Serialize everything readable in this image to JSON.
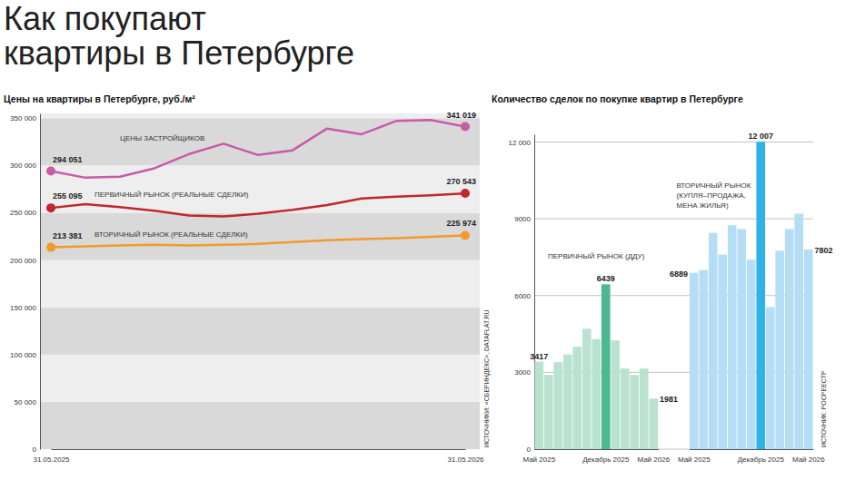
{
  "title": "Как покупают квартиры в Петербурге",
  "chart_data": [
    {
      "type": "line",
      "title": "Цены на квартиры в Петербурге, руб./м²",
      "categories": [
        "31.05.2025",
        null,
        null,
        null,
        null,
        null,
        null,
        null,
        null,
        null,
        null,
        null,
        "31.05.2026"
      ],
      "series": [
        {
          "name": "ЦЕНЫ ЗАСТРОЙЩИКОВ",
          "color": "#c75ba7",
          "values": [
            294051,
            287000,
            288000,
            297000,
            312000,
            323000,
            311000,
            316000,
            339000,
            333000,
            347000,
            348000,
            341019
          ],
          "value_labels": [
            "294 051",
            null,
            null,
            null,
            null,
            null,
            null,
            null,
            null,
            null,
            null,
            null,
            "341 019"
          ]
        },
        {
          "name": "ПЕРВИЧНЫЙ РЫНОК (РЕАЛЬНЫЕ СДЕЛКИ)",
          "color": "#c1272d",
          "values": [
            255095,
            259000,
            256000,
            252000,
            247000,
            246000,
            249000,
            253000,
            258000,
            265000,
            267000,
            268500,
            270543
          ],
          "value_labels": [
            "255 095",
            null,
            null,
            null,
            null,
            null,
            null,
            null,
            null,
            null,
            null,
            null,
            "270 543"
          ]
        },
        {
          "name": "ВТОРИЧНЫЙ РЫНОК (РЕАЛЬНЫЕ СДЕЛКИ)",
          "color": "#f29a2e",
          "values": [
            213381,
            214500,
            215500,
            216000,
            215500,
            216000,
            217000,
            219000,
            221000,
            222000,
            223000,
            224500,
            225974
          ],
          "value_labels": [
            "213 381",
            null,
            null,
            null,
            null,
            null,
            null,
            null,
            null,
            null,
            null,
            null,
            "225 974"
          ]
        }
      ],
      "ylim": [
        0,
        355000
      ],
      "yticks": [
        0,
        {
          "value": 50000,
          "label": "50 000"
        },
        {
          "value": 100000,
          "label": "100 000"
        },
        {
          "value": 150000,
          "label": "150 000"
        },
        {
          "value": 200000,
          "label": "200 000"
        },
        {
          "value": 250000,
          "label": "250 000"
        },
        {
          "value": 300000,
          "label": "300 000"
        },
        {
          "value": 350000,
          "label": "350 000"
        }
      ],
      "grid": true,
      "marker": "circle",
      "data_labels": true,
      "annotations": [
        "ИСТОЧНИКИ: «СБЕРИНДЕКС», DATAFLAT.RU"
      ]
    },
    {
      "type": "bar",
      "title": "Количество сделок по покупке квартир в Петербурге",
      "categories": [
        "Май 2025",
        null,
        null,
        null,
        null,
        null,
        null,
        "Декабрь 2025",
        null,
        null,
        null,
        null,
        "Май 2026"
      ],
      "series": [
        {
          "name": "ПЕРВИЧНЫЙ РЫНОК (ДДУ)",
          "colors": [
            "#b9e2cf",
            "#b9e2cf",
            "#b9e2cf",
            "#b9e2cf",
            "#b9e2cf",
            "#b9e2cf",
            "#b9e2cf",
            "#4cb890",
            "#b9e2cf",
            "#b9e2cf",
            "#b9e2cf",
            "#b9e2cf",
            "#b9e2cf"
          ],
          "values": [
            3417,
            2900,
            3400,
            3700,
            4000,
            4700,
            4300,
            6439,
            4250,
            3150,
            2900,
            3150,
            1981
          ],
          "value_labels": [
            "3417",
            null,
            null,
            null,
            null,
            null,
            null,
            "6439",
            null,
            null,
            null,
            null,
            "1981"
          ]
        },
        {
          "name": "ВТОРИЧНЫЙ РЫНОК (КУПЛЯ–ПРОДАЖА, МЕНА ЖИЛЬЯ)",
          "colors": [
            "#b5def6",
            "#b5def6",
            "#b5def6",
            "#b5def6",
            "#b5def6",
            "#b5def6",
            "#b5def6",
            "#2fb2e8",
            "#b5def6",
            "#b5def6",
            "#b5def6",
            "#b5def6",
            "#b5def6"
          ],
          "values": [
            6889,
            7000,
            8450,
            7600,
            8750,
            8600,
            7400,
            12007,
            5550,
            7750,
            8600,
            9200,
            7802
          ],
          "value_labels": [
            "6889",
            null,
            null,
            null,
            null,
            null,
            null,
            "12 007",
            null,
            null,
            null,
            null,
            "7802"
          ]
        }
      ],
      "ylim": [
        0,
        12300
      ],
      "yticks": [
        0,
        3000,
        6000,
        9000,
        {
          "value": 12000,
          "label": "12 000"
        }
      ],
      "grid": true,
      "data_labels": true,
      "annotations": [
        "ИСТОЧНИК: РОСРЕЕСТР"
      ]
    }
  ]
}
